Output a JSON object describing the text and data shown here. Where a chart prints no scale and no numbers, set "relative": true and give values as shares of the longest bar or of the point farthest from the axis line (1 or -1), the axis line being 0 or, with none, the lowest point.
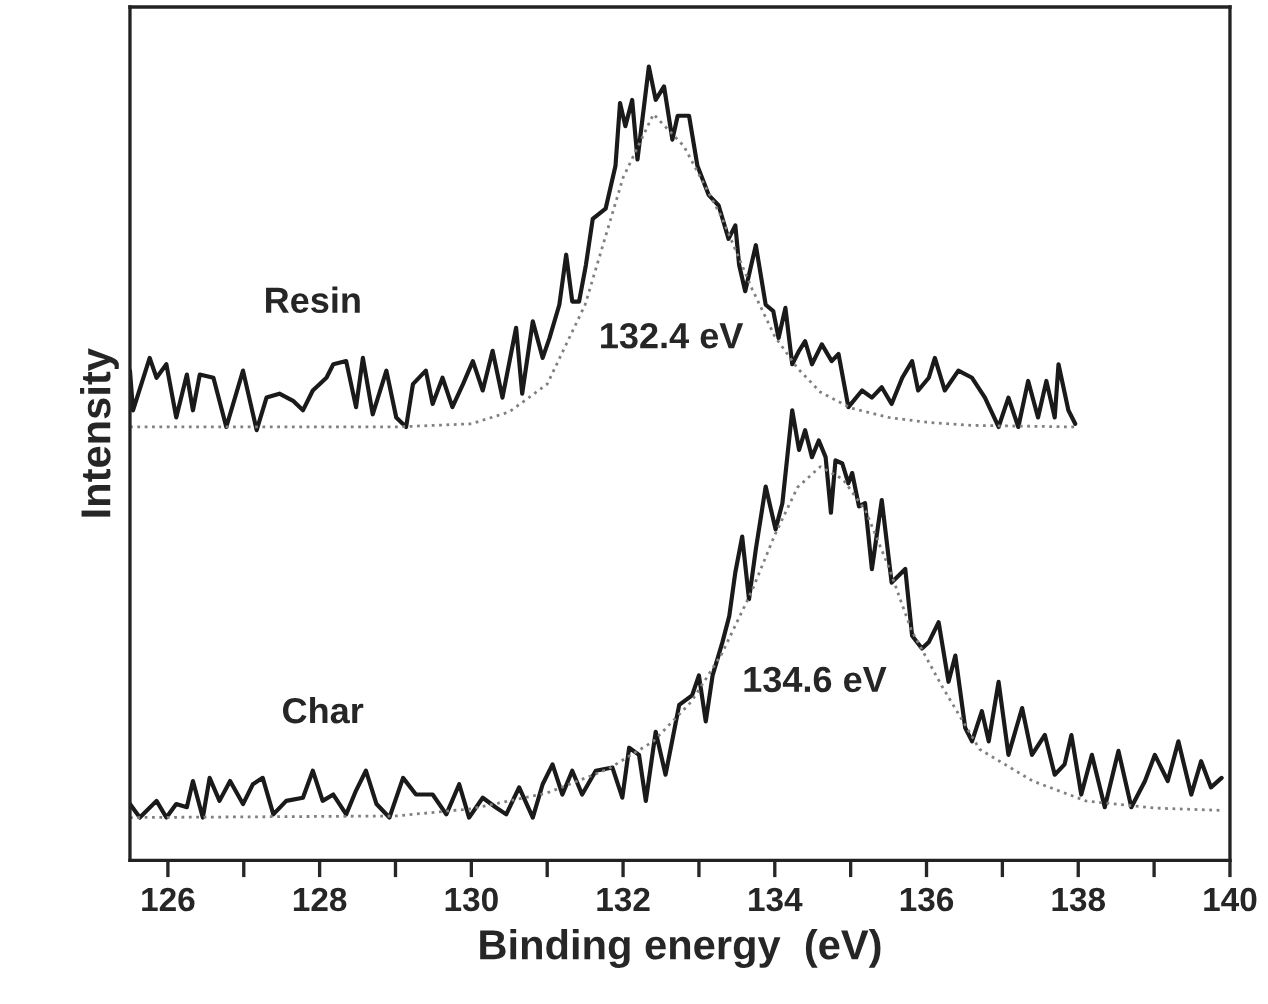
{
  "chart_data": {
    "type": "line",
    "relative": true,
    "xlabel": "Binding energy  (eV)",
    "ylabel": "Intensity",
    "xlim": [
      125.5,
      140
    ],
    "xticks": [
      126,
      {
        "value": 127,
        "label": null
      },
      128,
      {
        "value": 129,
        "label": null
      },
      130,
      {
        "value": 131,
        "label": null
      },
      132,
      {
        "value": 133,
        "label": null
      },
      134,
      {
        "value": 135,
        "label": null
      },
      136,
      {
        "value": 137,
        "label": null
      },
      138,
      {
        "value": 139,
        "label": null
      },
      140
    ],
    "grid": false,
    "legend": false,
    "marker": "none",
    "annotations": [
      "132.4 eV",
      "134.6 eV"
    ],
    "series": [
      {
        "name": "Resin",
        "color": "#1a1a1a",
        "line_style": "solid",
        "x": [
          125.5,
          125.54,
          125.76,
          125.85,
          125.98,
          126.11,
          126.25,
          126.33,
          126.42,
          126.6,
          126.77,
          126.99,
          127.17,
          127.3,
          127.47,
          127.65,
          127.78,
          127.91,
          128.09,
          128.18,
          128.35,
          128.48,
          128.57,
          128.7,
          128.88,
          129.01,
          129.14,
          129.23,
          129.4,
          129.49,
          129.62,
          129.75,
          129.89,
          130.02,
          130.15,
          130.28,
          130.41,
          130.59,
          130.67,
          130.81,
          130.94,
          131.03,
          131.16,
          131.25,
          131.33,
          131.42,
          131.51,
          131.6,
          131.77,
          131.9,
          131.96,
          132.03,
          132.12,
          132.19,
          132.34,
          132.43,
          132.54,
          132.65,
          132.72,
          132.87,
          132.98,
          133.13,
          133.26,
          133.39,
          133.48,
          133.53,
          133.61,
          133.75,
          133.88,
          133.98,
          134.05,
          134.14,
          134.23,
          134.32,
          134.4,
          134.49,
          134.62,
          134.75,
          134.84,
          134.97,
          135.15,
          135.28,
          135.41,
          135.54,
          135.68,
          135.81,
          135.89,
          136.03,
          136.11,
          136.24,
          136.42,
          136.6,
          136.77,
          136.95,
          137.08,
          137.21,
          137.34,
          137.47,
          137.58,
          137.69,
          137.74,
          137.87,
          137.96
        ],
        "values": [
          0.617,
          0.567,
          0.633,
          0.608,
          0.625,
          0.558,
          0.612,
          0.567,
          0.612,
          0.608,
          0.546,
          0.617,
          0.542,
          0.583,
          0.588,
          0.579,
          0.567,
          0.592,
          0.608,
          0.625,
          0.629,
          0.571,
          0.633,
          0.562,
          0.617,
          0.558,
          0.546,
          0.6,
          0.617,
          0.575,
          0.608,
          0.571,
          0.6,
          0.629,
          0.592,
          0.642,
          0.583,
          0.671,
          0.588,
          0.679,
          0.633,
          0.658,
          0.7,
          0.763,
          0.704,
          0.704,
          0.75,
          0.808,
          0.821,
          0.875,
          0.954,
          0.925,
          0.958,
          0.883,
          1.0,
          0.958,
          0.975,
          0.908,
          0.938,
          0.938,
          0.875,
          0.838,
          0.825,
          0.783,
          0.8,
          0.75,
          0.717,
          0.775,
          0.7,
          0.692,
          0.658,
          0.696,
          0.625,
          0.642,
          0.654,
          0.625,
          0.65,
          0.629,
          0.638,
          0.571,
          0.592,
          0.583,
          0.596,
          0.575,
          0.608,
          0.629,
          0.592,
          0.608,
          0.633,
          0.592,
          0.617,
          0.608,
          0.583,
          0.546,
          0.583,
          0.546,
          0.604,
          0.558,
          0.604,
          0.558,
          0.625,
          0.567,
          0.55
        ]
      },
      {
        "color": "#808080",
        "line_style": "dotted",
        "x": [
          125.5,
          129.0,
          130.0,
          130.5,
          131.0,
          131.5,
          132.0,
          132.4,
          132.8,
          133.3,
          133.7,
          134.0,
          134.3,
          134.6,
          135.0,
          135.5,
          136.0,
          136.6,
          138.0
        ],
        "values": [
          0.546,
          0.546,
          0.55,
          0.565,
          0.6,
          0.7,
          0.86,
          0.94,
          0.9,
          0.81,
          0.72,
          0.66,
          0.62,
          0.59,
          0.57,
          0.558,
          0.552,
          0.548,
          0.546
        ]
      },
      {
        "name": "Char",
        "color": "#1a1a1a",
        "line_style": "solid",
        "x": [
          125.5,
          125.63,
          125.85,
          125.98,
          126.11,
          126.25,
          126.33,
          126.46,
          126.55,
          126.68,
          126.82,
          126.99,
          127.12,
          127.25,
          127.39,
          127.56,
          127.78,
          127.91,
          128.04,
          128.18,
          128.35,
          128.48,
          128.61,
          128.75,
          128.92,
          129.1,
          129.27,
          129.49,
          129.67,
          129.84,
          129.97,
          130.15,
          130.32,
          130.46,
          130.63,
          130.81,
          130.94,
          131.07,
          131.2,
          131.33,
          131.46,
          131.64,
          131.86,
          131.99,
          132.08,
          132.21,
          132.3,
          132.43,
          132.56,
          132.74,
          132.91,
          133.0,
          133.09,
          133.18,
          133.31,
          133.4,
          133.48,
          133.57,
          133.66,
          133.75,
          133.88,
          134.01,
          134.1,
          134.23,
          134.32,
          134.4,
          134.49,
          134.58,
          134.67,
          134.74,
          134.8,
          134.89,
          134.97,
          135.02,
          135.11,
          135.19,
          135.28,
          135.41,
          135.54,
          135.72,
          135.81,
          135.94,
          136.03,
          136.16,
          136.29,
          136.38,
          136.51,
          136.6,
          136.73,
          136.82,
          136.95,
          137.08,
          137.26,
          137.39,
          137.56,
          137.69,
          137.82,
          137.91,
          138.04,
          138.18,
          138.35,
          138.53,
          138.7,
          138.88,
          139.01,
          139.18,
          139.32,
          139.49,
          139.62,
          139.75,
          139.89
        ],
        "values": [
          0.071,
          0.054,
          0.075,
          0.054,
          0.071,
          0.067,
          0.1,
          0.054,
          0.104,
          0.075,
          0.1,
          0.071,
          0.096,
          0.104,
          0.058,
          0.075,
          0.079,
          0.113,
          0.075,
          0.083,
          0.058,
          0.088,
          0.113,
          0.071,
          0.054,
          0.104,
          0.083,
          0.083,
          0.058,
          0.096,
          0.054,
          0.079,
          0.067,
          0.058,
          0.092,
          0.054,
          0.096,
          0.121,
          0.083,
          0.113,
          0.083,
          0.113,
          0.117,
          0.079,
          0.142,
          0.133,
          0.075,
          0.162,
          0.108,
          0.196,
          0.208,
          0.233,
          0.175,
          0.233,
          0.275,
          0.308,
          0.363,
          0.408,
          0.329,
          0.392,
          0.471,
          0.417,
          0.45,
          0.567,
          0.517,
          0.542,
          0.508,
          0.529,
          0.508,
          0.438,
          0.504,
          0.5,
          0.475,
          0.488,
          0.446,
          0.45,
          0.367,
          0.454,
          0.35,
          0.367,
          0.283,
          0.267,
          0.275,
          0.3,
          0.225,
          0.258,
          0.167,
          0.15,
          0.188,
          0.15,
          0.225,
          0.133,
          0.192,
          0.133,
          0.158,
          0.108,
          0.121,
          0.158,
          0.083,
          0.133,
          0.067,
          0.138,
          0.067,
          0.1,
          0.133,
          0.1,
          0.15,
          0.083,
          0.125,
          0.092,
          0.104
        ]
      },
      {
        "color": "#808080",
        "line_style": "dotted",
        "x": [
          125.5,
          129.0,
          130.0,
          131.0,
          131.8,
          132.4,
          132.9,
          133.3,
          133.7,
          134.0,
          134.3,
          134.6,
          134.9,
          135.2,
          135.5,
          135.8,
          136.2,
          136.7,
          137.4,
          138.1,
          139.0,
          139.9
        ],
        "values": [
          0.054,
          0.056,
          0.065,
          0.085,
          0.115,
          0.15,
          0.2,
          0.26,
          0.34,
          0.41,
          0.47,
          0.496,
          0.48,
          0.44,
          0.37,
          0.29,
          0.22,
          0.14,
          0.1,
          0.075,
          0.066,
          0.063
        ]
      }
    ]
  }
}
